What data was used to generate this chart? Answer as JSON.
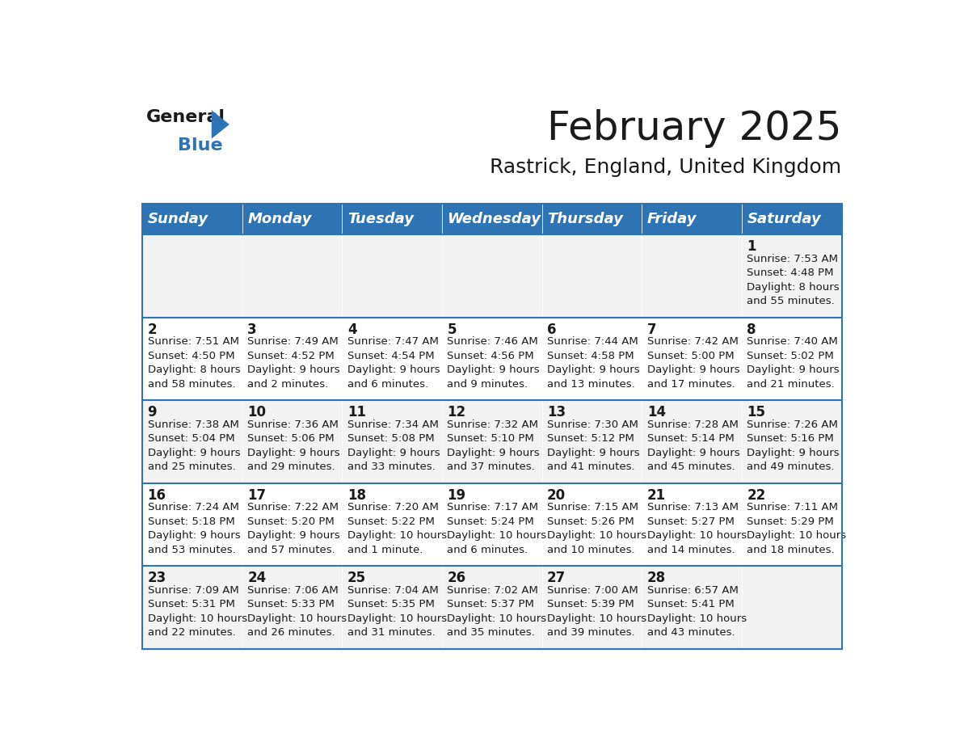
{
  "title": "February 2025",
  "subtitle": "Rastrick, England, United Kingdom",
  "header_color": "#2E74B5",
  "header_text_color": "#FFFFFF",
  "cell_bg_even": "#F2F2F2",
  "cell_bg_odd": "#FFFFFF",
  "day_names": [
    "Sunday",
    "Monday",
    "Tuesday",
    "Wednesday",
    "Thursday",
    "Friday",
    "Saturday"
  ],
  "weeks": [
    [
      {
        "day": "",
        "info": ""
      },
      {
        "day": "",
        "info": ""
      },
      {
        "day": "",
        "info": ""
      },
      {
        "day": "",
        "info": ""
      },
      {
        "day": "",
        "info": ""
      },
      {
        "day": "",
        "info": ""
      },
      {
        "day": "1",
        "info": "Sunrise: 7:53 AM\nSunset: 4:48 PM\nDaylight: 8 hours\nand 55 minutes."
      }
    ],
    [
      {
        "day": "2",
        "info": "Sunrise: 7:51 AM\nSunset: 4:50 PM\nDaylight: 8 hours\nand 58 minutes."
      },
      {
        "day": "3",
        "info": "Sunrise: 7:49 AM\nSunset: 4:52 PM\nDaylight: 9 hours\nand 2 minutes."
      },
      {
        "day": "4",
        "info": "Sunrise: 7:47 AM\nSunset: 4:54 PM\nDaylight: 9 hours\nand 6 minutes."
      },
      {
        "day": "5",
        "info": "Sunrise: 7:46 AM\nSunset: 4:56 PM\nDaylight: 9 hours\nand 9 minutes."
      },
      {
        "day": "6",
        "info": "Sunrise: 7:44 AM\nSunset: 4:58 PM\nDaylight: 9 hours\nand 13 minutes."
      },
      {
        "day": "7",
        "info": "Sunrise: 7:42 AM\nSunset: 5:00 PM\nDaylight: 9 hours\nand 17 minutes."
      },
      {
        "day": "8",
        "info": "Sunrise: 7:40 AM\nSunset: 5:02 PM\nDaylight: 9 hours\nand 21 minutes."
      }
    ],
    [
      {
        "day": "9",
        "info": "Sunrise: 7:38 AM\nSunset: 5:04 PM\nDaylight: 9 hours\nand 25 minutes."
      },
      {
        "day": "10",
        "info": "Sunrise: 7:36 AM\nSunset: 5:06 PM\nDaylight: 9 hours\nand 29 minutes."
      },
      {
        "day": "11",
        "info": "Sunrise: 7:34 AM\nSunset: 5:08 PM\nDaylight: 9 hours\nand 33 minutes."
      },
      {
        "day": "12",
        "info": "Sunrise: 7:32 AM\nSunset: 5:10 PM\nDaylight: 9 hours\nand 37 minutes."
      },
      {
        "day": "13",
        "info": "Sunrise: 7:30 AM\nSunset: 5:12 PM\nDaylight: 9 hours\nand 41 minutes."
      },
      {
        "day": "14",
        "info": "Sunrise: 7:28 AM\nSunset: 5:14 PM\nDaylight: 9 hours\nand 45 minutes."
      },
      {
        "day": "15",
        "info": "Sunrise: 7:26 AM\nSunset: 5:16 PM\nDaylight: 9 hours\nand 49 minutes."
      }
    ],
    [
      {
        "day": "16",
        "info": "Sunrise: 7:24 AM\nSunset: 5:18 PM\nDaylight: 9 hours\nand 53 minutes."
      },
      {
        "day": "17",
        "info": "Sunrise: 7:22 AM\nSunset: 5:20 PM\nDaylight: 9 hours\nand 57 minutes."
      },
      {
        "day": "18",
        "info": "Sunrise: 7:20 AM\nSunset: 5:22 PM\nDaylight: 10 hours\nand 1 minute."
      },
      {
        "day": "19",
        "info": "Sunrise: 7:17 AM\nSunset: 5:24 PM\nDaylight: 10 hours\nand 6 minutes."
      },
      {
        "day": "20",
        "info": "Sunrise: 7:15 AM\nSunset: 5:26 PM\nDaylight: 10 hours\nand 10 minutes."
      },
      {
        "day": "21",
        "info": "Sunrise: 7:13 AM\nSunset: 5:27 PM\nDaylight: 10 hours\nand 14 minutes."
      },
      {
        "day": "22",
        "info": "Sunrise: 7:11 AM\nSunset: 5:29 PM\nDaylight: 10 hours\nand 18 minutes."
      }
    ],
    [
      {
        "day": "23",
        "info": "Sunrise: 7:09 AM\nSunset: 5:31 PM\nDaylight: 10 hours\nand 22 minutes."
      },
      {
        "day": "24",
        "info": "Sunrise: 7:06 AM\nSunset: 5:33 PM\nDaylight: 10 hours\nand 26 minutes."
      },
      {
        "day": "25",
        "info": "Sunrise: 7:04 AM\nSunset: 5:35 PM\nDaylight: 10 hours\nand 31 minutes."
      },
      {
        "day": "26",
        "info": "Sunrise: 7:02 AM\nSunset: 5:37 PM\nDaylight: 10 hours\nand 35 minutes."
      },
      {
        "day": "27",
        "info": "Sunrise: 7:00 AM\nSunset: 5:39 PM\nDaylight: 10 hours\nand 39 minutes."
      },
      {
        "day": "28",
        "info": "Sunrise: 6:57 AM\nSunset: 5:41 PM\nDaylight: 10 hours\nand 43 minutes."
      },
      {
        "day": "",
        "info": ""
      }
    ]
  ],
  "logo_text_general": "General",
  "logo_text_blue": "Blue",
  "title_fontsize": 36,
  "subtitle_fontsize": 18,
  "header_fontsize": 13,
  "day_num_fontsize": 12,
  "info_fontsize": 9.5
}
